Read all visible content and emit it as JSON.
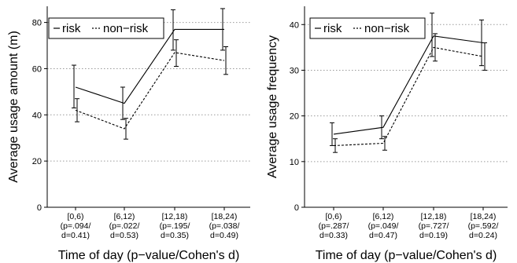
{
  "chart_data": [
    {
      "type": "line",
      "categories": [
        [
          "[0,6)",
          "(p=.094/",
          "d=0.41)"
        ],
        [
          "[6,12)",
          "(p=.022/",
          "d=0.53)"
        ],
        [
          "[12,18)",
          "(p=.195/",
          "d=0.35)"
        ],
        [
          "[18,24)",
          "(p=.038/",
          "d=0.49)"
        ]
      ],
      "xlabel": "Time of day (p−value/Cohen's d)",
      "ylabel": "Average usage amount (m)",
      "yticks": [
        "0",
        "20",
        "40",
        "60",
        "80"
      ],
      "ylim": [
        0,
        87
      ],
      "grid": "horizontal dotted",
      "legend_placement": "top-left",
      "series": [
        {
          "name": "risk",
          "style": "solid",
          "values": [
            52,
            45,
            77,
            77
          ],
          "err_low": [
            43,
            38,
            68,
            68
          ],
          "err_high": [
            61.5,
            52,
            85.5,
            86
          ]
        },
        {
          "name": "non−risk",
          "style": "dashed",
          "values": [
            42,
            34,
            67,
            63.5
          ],
          "err_low": [
            37,
            29.5,
            61,
            57.5
          ],
          "err_high": [
            47,
            38.5,
            72.5,
            69.5
          ]
        }
      ]
    },
    {
      "type": "line",
      "categories": [
        [
          "[0,6)",
          "(p=.287/",
          "d=0.33)"
        ],
        [
          "[6,12)",
          "(p=.049/",
          "d=0.47)"
        ],
        [
          "[12,18)",
          "(p=.727/",
          "d=0.19)"
        ],
        [
          "[18,24)",
          "(p=.592/",
          "d=0.24)"
        ]
      ],
      "xlabel": "Time of day (p−value/Cohen's d)",
      "ylabel": "Average usage frequency",
      "yticks": [
        "0",
        "10",
        "20",
        "30",
        "40"
      ],
      "ylim": [
        0,
        44
      ],
      "grid": "horizontal dotted",
      "legend_placement": "top-left",
      "series": [
        {
          "name": "risk",
          "style": "solid",
          "values": [
            16,
            17.5,
            37.5,
            36
          ],
          "err_low": [
            13.5,
            15,
            33,
            31
          ],
          "err_high": [
            18.5,
            20,
            42.5,
            41
          ]
        },
        {
          "name": "non−risk",
          "style": "dashed",
          "values": [
            13.5,
            14,
            35,
            33
          ],
          "err_low": [
            12,
            12.5,
            32,
            30
          ],
          "err_high": [
            15,
            15.5,
            38,
            36
          ]
        }
      ]
    }
  ]
}
